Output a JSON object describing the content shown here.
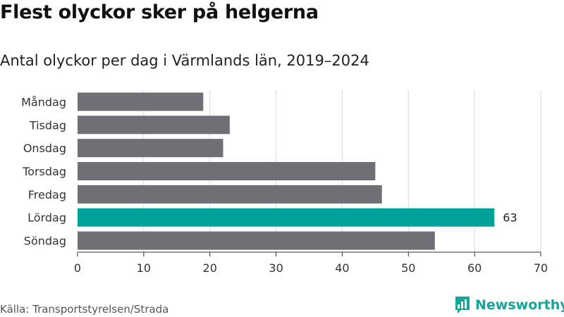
{
  "title": "Flest olyckor sker på helgerna",
  "subtitle": "Antal olyckor per dag i Värmlands län, 2019–2024",
  "source": "Källa: Transportstyrelsen/Strada",
  "brand": {
    "name": "Newsworthy",
    "logo_icon": "newsworthy-chart-logo-icon"
  },
  "colors": {
    "bar": "#706f76",
    "highlight": "#00a19a",
    "grid": "#d9d9d9",
    "brand": "#17a39a"
  },
  "chart_data": {
    "type": "bar",
    "orientation": "horizontal",
    "categories": [
      "Måndag",
      "Tisdag",
      "Onsdag",
      "Torsdag",
      "Fredag",
      "Lördag",
      "Söndag"
    ],
    "values": [
      19,
      23,
      22,
      45,
      46,
      63,
      54
    ],
    "highlight_category": "Lördag",
    "data_labels": [
      {
        "category": "Lördag",
        "text": "63"
      }
    ],
    "xlim": [
      0,
      70
    ],
    "xticks": [
      0,
      10,
      20,
      30,
      40,
      50,
      60,
      70
    ],
    "grid": "vertical",
    "legend": "none"
  }
}
